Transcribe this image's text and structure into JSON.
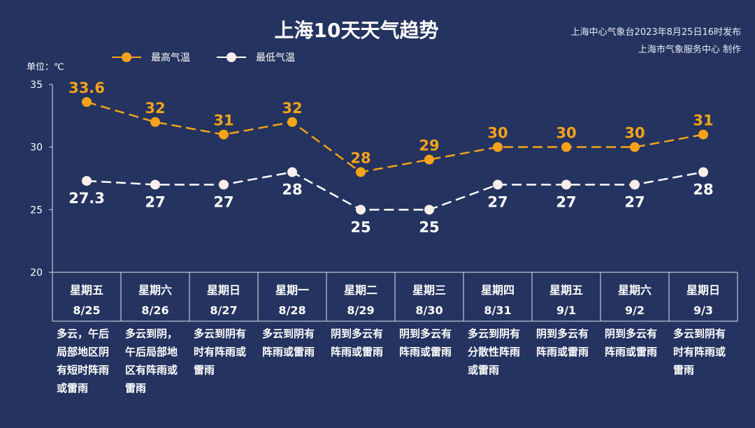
{
  "header": {
    "title": "上海10天天气趋势",
    "source_line1": "上海中心气象台2023年8月25日16时发布",
    "source_line2": "上海市气象服务中心 制作",
    "unit": "单位：℃"
  },
  "colors": {
    "background": "#24335f",
    "high": "#f5a31a",
    "low": "#ffffff"
  },
  "chart_data": {
    "type": "line",
    "title": "上海10天天气趋势",
    "ylabel": "单位：℃",
    "ylim": [
      20,
      35
    ],
    "yticks": [
      20,
      25,
      30,
      35
    ],
    "categories": [
      "8/25",
      "8/26",
      "8/27",
      "8/28",
      "8/29",
      "8/30",
      "8/31",
      "9/1",
      "9/2",
      "9/3"
    ],
    "weekdays": [
      "星期五",
      "星期六",
      "星期日",
      "星期一",
      "星期二",
      "星期三",
      "星期四",
      "星期五",
      "星期六",
      "星期日"
    ],
    "series": [
      {
        "name": "最高气温",
        "values": [
          33.6,
          32,
          31,
          32,
          28,
          29,
          30,
          30,
          30,
          31
        ],
        "labels": [
          "33.6",
          "32",
          "31",
          "32",
          "28",
          "29",
          "30",
          "30",
          "30",
          "31"
        ]
      },
      {
        "name": "最低气温",
        "values": [
          27.3,
          27,
          27,
          28,
          25,
          25,
          27,
          27,
          27,
          28
        ],
        "labels": [
          "27.3",
          "27",
          "27",
          "28",
          "25",
          "25",
          "27",
          "27",
          "27",
          "28"
        ]
      }
    ],
    "legend_position": "top-left",
    "descriptions": [
      [
        "多云，午后",
        "局部地区阴",
        "有短时阵雨",
        "或雷雨"
      ],
      [
        "多云到阴，",
        "午后局部地",
        "区有阵雨或",
        "雷雨"
      ],
      [
        "多云到阴有",
        "时有阵雨或",
        "雷雨"
      ],
      [
        "多云到阴有",
        "阵雨或雷雨"
      ],
      [
        "阴到多云有",
        "阵雨或雷雨"
      ],
      [
        "阴到多云有",
        "阵雨或雷雨"
      ],
      [
        "多云到阴有",
        "分散性阵雨",
        "或雷雨"
      ],
      [
        "阴到多云有",
        "阵雨或雷雨"
      ],
      [
        "阴到多云有",
        "阵雨或雷雨"
      ],
      [
        "多云到阴有",
        "时有阵雨或",
        "雷雨"
      ]
    ]
  }
}
